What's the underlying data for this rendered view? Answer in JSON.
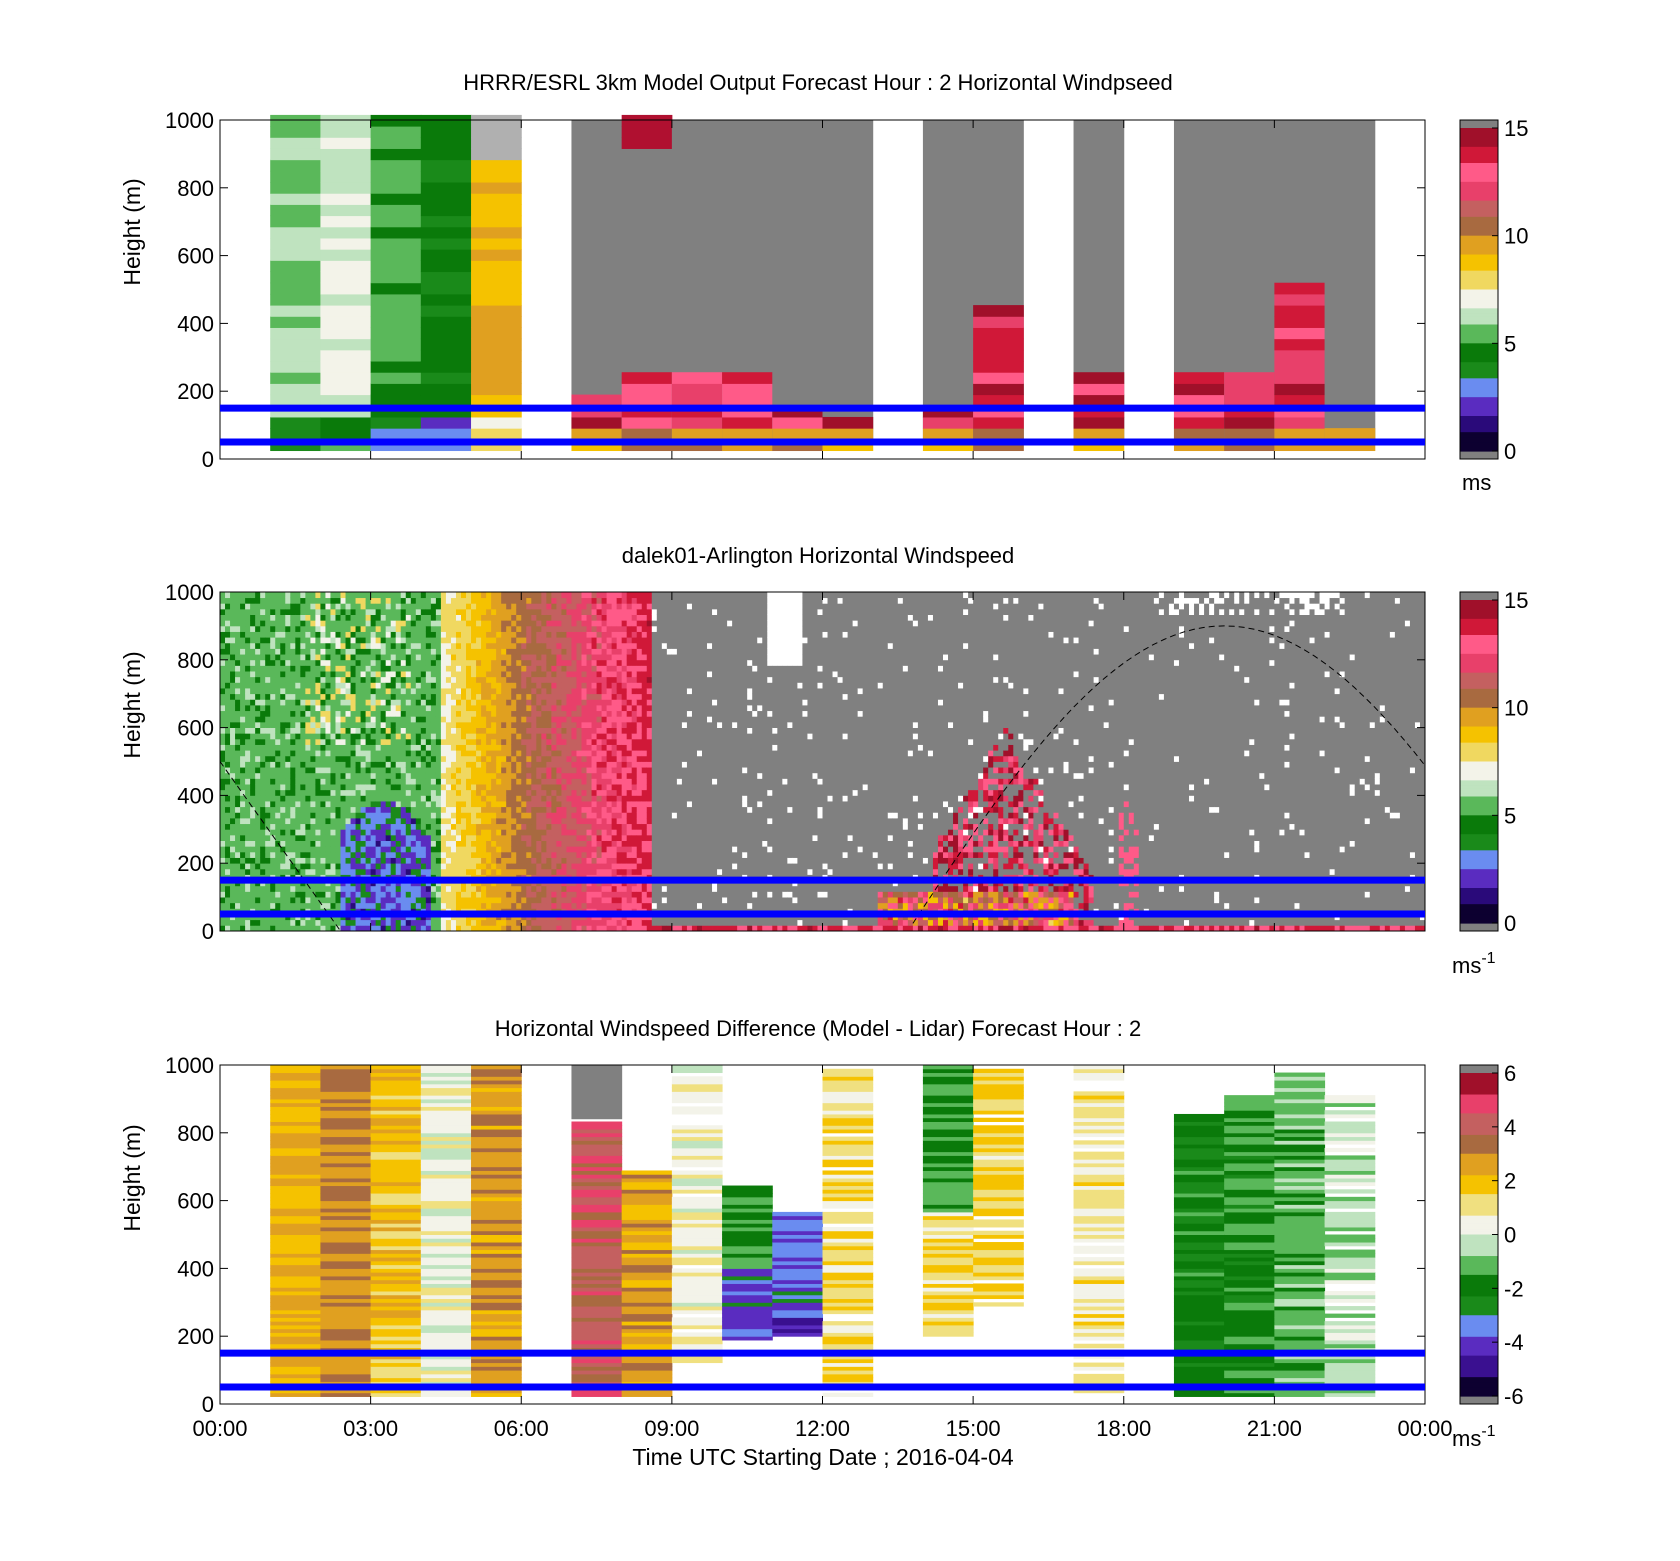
{
  "colors": {
    "line_blue": "#0000ff",
    "na_gray": "#808080",
    "speed_cmap": [
      "#0d0030",
      "#2a0a7a",
      "#5a2cc0",
      "#6a8cf0",
      "#1a8a1a",
      "#0a7a0a",
      "#5ab85a",
      "#bfe3bf",
      "#f3f3e9",
      "#f0d860",
      "#f5c200",
      "#e0a020",
      "#a86a40",
      "#c46060",
      "#e8406a",
      "#ff5a88",
      "#d01838",
      "#a0102a"
    ],
    "diff_cmap": [
      "#0d0030",
      "#3a1090",
      "#5a2cc0",
      "#6a8cf0",
      "#1a8a1a",
      "#0a7a0a",
      "#5ab85a",
      "#bfe3bf",
      "#f3f3e9",
      "#f0e080",
      "#f5c200",
      "#e0a020",
      "#a86a40",
      "#c46060",
      "#e8406a",
      "#a0102a"
    ]
  },
  "x_axis": {
    "ticks": [
      "00:00",
      "03:00",
      "06:00",
      "09:00",
      "12:00",
      "15:00",
      "18:00",
      "21:00",
      "00:00"
    ],
    "label": "Time UTC  Starting Date ; 2016-04-04"
  },
  "chart_data": [
    {
      "type": "heatmap",
      "title": "HRRR/ESRL 3km Model Output   Forecast Hour : 2 Horizontal Windpseed",
      "ylabel": "Height (m)",
      "xlim_hours": [
        0,
        24
      ],
      "ylim": [
        0,
        1000
      ],
      "yticks": [
        "1000",
        "800",
        "600",
        "400",
        "200",
        "0"
      ],
      "colorbar": {
        "ticks": [
          "15",
          "10",
          "5",
          "0"
        ],
        "range": [
          0,
          15
        ],
        "unit": "ms"
      },
      "reference_lines_m": [
        50,
        150
      ],
      "grid": false
    },
    {
      "type": "heatmap",
      "title": "dalek01-Arlington  Horizontal Windspeed",
      "ylabel": "Height (m)",
      "xlim_hours": [
        0,
        24
      ],
      "ylim": [
        0,
        1000
      ],
      "yticks": [
        "1000",
        "800",
        "600",
        "400",
        "200",
        "0"
      ],
      "colorbar": {
        "ticks": [
          "15",
          "10",
          "5",
          "0"
        ],
        "range": [
          0,
          15
        ],
        "unit": "ms",
        "unit_sup": "-1"
      },
      "reference_lines_m": [
        50,
        150
      ],
      "grid": false
    },
    {
      "type": "heatmap",
      "title": "Horizontal Windspeed Difference (Model - Lidar) Forecast Hour : 2",
      "ylabel": "Height (m)",
      "xlim_hours": [
        0,
        24
      ],
      "ylim": [
        0,
        1000
      ],
      "yticks": [
        "1000",
        "800",
        "600",
        "400",
        "200",
        "0"
      ],
      "colorbar": {
        "ticks": [
          "6",
          "4",
          "2",
          "0",
          "-2",
          "-4",
          "-6"
        ],
        "range": [
          -6,
          6
        ],
        "unit": "ms",
        "unit_sup": "-1"
      },
      "reference_lines_m": [
        50,
        150
      ],
      "grid": false
    }
  ]
}
